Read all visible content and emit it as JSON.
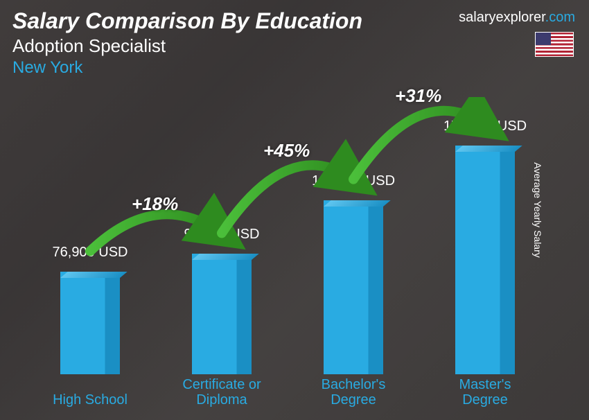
{
  "header": {
    "title": "Salary Comparison By Education",
    "subtitle": "Adoption Specialist",
    "location": "New York",
    "brand_prefix": "salaryexplorer",
    "brand_suffix": ".com"
  },
  "axis": {
    "ylabel": "Average Yearly Salary"
  },
  "chart": {
    "type": "bar",
    "max_value": 172000,
    "bar_color": "#29abe2",
    "bar_shade": "#1a8fc4",
    "bar_top": "#5ec5ef",
    "label_color": "#29abe2",
    "value_color": "#ffffff",
    "arc_color": "#4bbf3a",
    "arc_gradient_end": "#2e8b1f",
    "background_overlay": "rgba(40,40,45,0.75)",
    "bars": [
      {
        "label": "High School",
        "value": 76900,
        "value_label": "76,900 USD"
      },
      {
        "label": "Certificate or\nDiploma",
        "value": 90500,
        "value_label": "90,500 USD"
      },
      {
        "label": "Bachelor's\nDegree",
        "value": 131000,
        "value_label": "131,000 USD"
      },
      {
        "label": "Master's\nDegree",
        "value": 172000,
        "value_label": "172,000 USD"
      }
    ],
    "arcs": [
      {
        "from": 0,
        "to": 1,
        "label": "+18%"
      },
      {
        "from": 1,
        "to": 2,
        "label": "+45%"
      },
      {
        "from": 2,
        "to": 3,
        "label": "+31%"
      }
    ]
  },
  "layout": {
    "chart_area_height": 400,
    "bar_max_height": 330,
    "bar_spacing": 190,
    "bar_start_x": 0
  }
}
